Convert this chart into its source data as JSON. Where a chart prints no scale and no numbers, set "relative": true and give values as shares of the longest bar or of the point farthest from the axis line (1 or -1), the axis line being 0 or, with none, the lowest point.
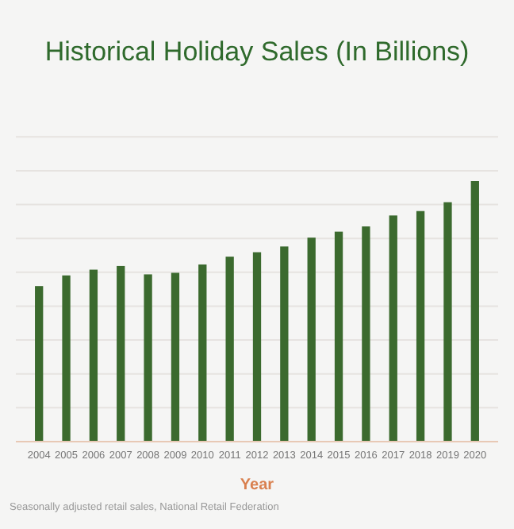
{
  "chart_data": {
    "type": "bar",
    "title": "Historical Holiday Sales (In Billions)",
    "xlabel": "Year",
    "categories": [
      "2004",
      "2005",
      "2006",
      "2007",
      "2008",
      "2009",
      "2010",
      "2011",
      "2012",
      "2013",
      "2014",
      "2015",
      "2016",
      "2017",
      "2018",
      "2019",
      "2020"
    ],
    "values": [
      0.597,
      0.638,
      0.66,
      0.674,
      0.642,
      0.648,
      0.68,
      0.71,
      0.727,
      0.749,
      0.783,
      0.806,
      0.826,
      0.868,
      0.885,
      0.919,
      1
    ],
    "color": "#3b6a2e",
    "relative": true,
    "grid": "y",
    "annotations": [
      "Seasonally adjusted retail sales, National Retail Federation"
    ]
  }
}
